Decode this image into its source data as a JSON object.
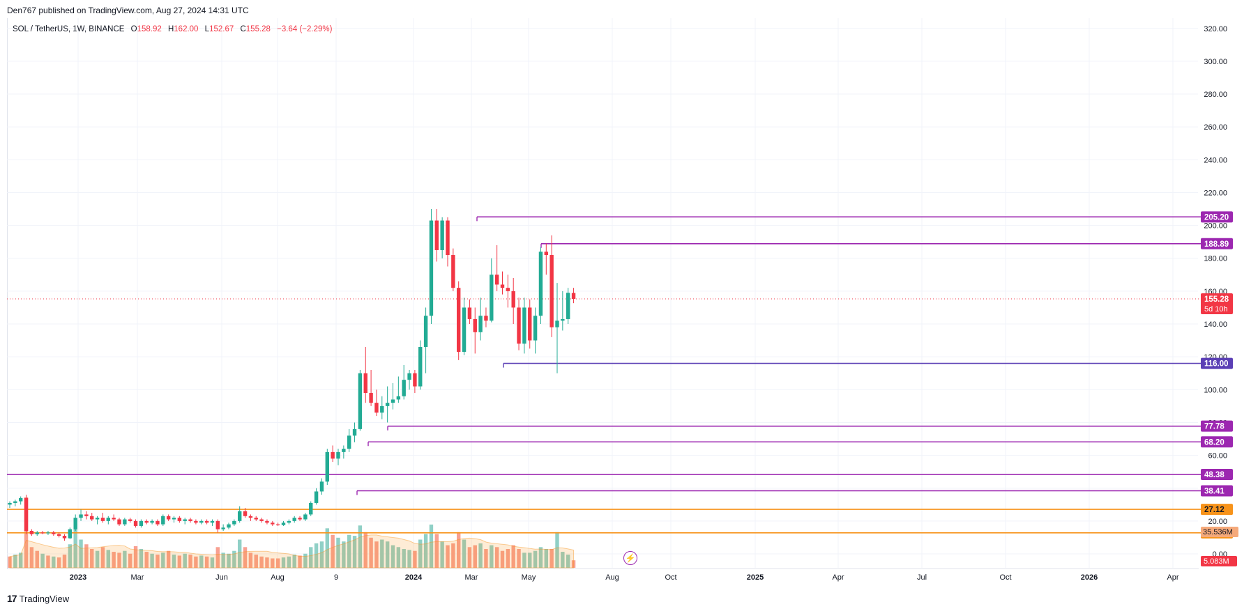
{
  "header": {
    "published": "Den767 published on TradingView.com, Aug 27, 2024 14:31 UTC"
  },
  "legend": {
    "symbol": "SOL / TetherUS, 1W, BINANCE",
    "open_label": "O",
    "open": "158.92",
    "high_label": "H",
    "high": "162.00",
    "low_label": "L",
    "low": "152.67",
    "close_label": "C",
    "close": "155.28",
    "change": "−3.64 (−2.29%)"
  },
  "footer": {
    "brand": "TradingView"
  },
  "colors": {
    "up": "#22ab94",
    "down": "#f23645",
    "level_purple": "#9c27b0",
    "level_support": "#5b3fb5",
    "level_orange": "#f7931a",
    "volume_up": "#90d0c6",
    "volume_down": "#f8a091",
    "grid": "#f0f3fa"
  },
  "chart_data": {
    "type": "candlestick",
    "timeframe": "1W",
    "y_axis_ticks": [
      "0.00",
      "20.00",
      "40.00",
      "60.00",
      "80.00",
      "100.00",
      "120.00",
      "140.00",
      "160.00",
      "180.00",
      "200.00",
      "220.00",
      "240.00",
      "260.00",
      "280.00",
      "300.00",
      "320.00"
    ],
    "ylim": [
      0,
      320
    ],
    "x_axis_labels": [
      "2023",
      "Mar",
      "Jun",
      "Aug",
      "9",
      "2024",
      "Mar",
      "May",
      "Aug",
      "Oct",
      "2025",
      "Apr",
      "Jul",
      "Oct",
      "2026",
      "Apr"
    ],
    "last_price": {
      "value": "155.28",
      "countdown": "5d 10h"
    },
    "horizontal_levels": [
      {
        "label": "205.20",
        "value": 205.2,
        "color": "#9c27b0"
      },
      {
        "label": "188.89",
        "value": 188.89,
        "color": "#9c27b0"
      },
      {
        "label": "116.00",
        "value": 116.0,
        "color": "#5b3fb5"
      },
      {
        "label": "77.78",
        "value": 77.78,
        "color": "#9c27b0"
      },
      {
        "label": "68.20",
        "value": 68.2,
        "color": "#9c27b0"
      },
      {
        "label": "48.38",
        "value": 48.38,
        "color": "#9c27b0"
      },
      {
        "label": "38.41",
        "value": 38.41,
        "color": "#9c27b0"
      },
      {
        "label": "27.12",
        "value": 27.12,
        "color": "#f7931a"
      },
      {
        "label": "12.80",
        "value": 12.8,
        "color": "#f7931a"
      }
    ],
    "volume_labels": {
      "ma": "35.536M",
      "current": "5.083M"
    },
    "candles": [
      {
        "o": 30,
        "h": 32,
        "l": 28,
        "c": 31
      },
      {
        "o": 31,
        "h": 33,
        "l": 29,
        "c": 32
      },
      {
        "o": 32,
        "h": 35,
        "l": 30,
        "c": 34
      },
      {
        "o": 34,
        "h": 36,
        "l": 12,
        "c": 14
      },
      {
        "o": 14,
        "h": 15,
        "l": 11,
        "c": 12
      },
      {
        "o": 12,
        "h": 14,
        "l": 11,
        "c": 13
      },
      {
        "o": 13,
        "h": 14,
        "l": 12,
        "c": 12.5
      },
      {
        "o": 12.5,
        "h": 14,
        "l": 11.5,
        "c": 13
      },
      {
        "o": 13,
        "h": 14,
        "l": 11,
        "c": 12
      },
      {
        "o": 12,
        "h": 13,
        "l": 10,
        "c": 11
      },
      {
        "o": 11,
        "h": 12,
        "l": 8,
        "c": 9.5
      },
      {
        "o": 9.5,
        "h": 16,
        "l": 9,
        "c": 15
      },
      {
        "o": 15,
        "h": 24,
        "l": 14,
        "c": 22
      },
      {
        "o": 22,
        "h": 27,
        "l": 20,
        "c": 24
      },
      {
        "o": 24,
        "h": 26,
        "l": 21,
        "c": 23
      },
      {
        "o": 23,
        "h": 25,
        "l": 20,
        "c": 21
      },
      {
        "o": 21,
        "h": 23,
        "l": 18,
        "c": 22
      },
      {
        "o": 22,
        "h": 25,
        "l": 19,
        "c": 20
      },
      {
        "o": 20,
        "h": 23,
        "l": 18,
        "c": 22
      },
      {
        "o": 22,
        "h": 24,
        "l": 20,
        "c": 21
      },
      {
        "o": 21,
        "h": 22,
        "l": 17,
        "c": 18
      },
      {
        "o": 18,
        "h": 22,
        "l": 17,
        "c": 21
      },
      {
        "o": 21,
        "h": 22,
        "l": 19,
        "c": 20
      },
      {
        "o": 20,
        "h": 21,
        "l": 16,
        "c": 17
      },
      {
        "o": 17,
        "h": 21,
        "l": 16,
        "c": 20
      },
      {
        "o": 20,
        "h": 21,
        "l": 18,
        "c": 19
      },
      {
        "o": 19,
        "h": 21,
        "l": 18,
        "c": 20
      },
      {
        "o": 20,
        "h": 21,
        "l": 17,
        "c": 18
      },
      {
        "o": 18,
        "h": 24,
        "l": 17,
        "c": 23
      },
      {
        "o": 23,
        "h": 24,
        "l": 20,
        "c": 21
      },
      {
        "o": 21,
        "h": 23,
        "l": 19,
        "c": 22
      },
      {
        "o": 22,
        "h": 23,
        "l": 19,
        "c": 20
      },
      {
        "o": 20,
        "h": 22,
        "l": 18,
        "c": 21
      },
      {
        "o": 21,
        "h": 22,
        "l": 19,
        "c": 20
      },
      {
        "o": 20,
        "h": 21,
        "l": 18,
        "c": 19
      },
      {
        "o": 19,
        "h": 21,
        "l": 18,
        "c": 20
      },
      {
        "o": 20,
        "h": 21,
        "l": 18,
        "c": 19
      },
      {
        "o": 19,
        "h": 21,
        "l": 17,
        "c": 20
      },
      {
        "o": 20,
        "h": 21,
        "l": 13,
        "c": 15
      },
      {
        "o": 15,
        "h": 18,
        "l": 14,
        "c": 16
      },
      {
        "o": 16,
        "h": 19,
        "l": 15,
        "c": 18
      },
      {
        "o": 18,
        "h": 21,
        "l": 17,
        "c": 20
      },
      {
        "o": 20,
        "h": 29,
        "l": 19,
        "c": 26
      },
      {
        "o": 26,
        "h": 28,
        "l": 22,
        "c": 23
      },
      {
        "o": 23,
        "h": 24,
        "l": 20,
        "c": 22
      },
      {
        "o": 22,
        "h": 23,
        "l": 20,
        "c": 21
      },
      {
        "o": 21,
        "h": 22,
        "l": 19,
        "c": 20
      },
      {
        "o": 20,
        "h": 21,
        "l": 18,
        "c": 19
      },
      {
        "o": 19,
        "h": 20,
        "l": 17,
        "c": 18
      },
      {
        "o": 18,
        "h": 19,
        "l": 17,
        "c": 17.5
      },
      {
        "o": 17.5,
        "h": 20,
        "l": 17,
        "c": 19
      },
      {
        "o": 19,
        "h": 21,
        "l": 18,
        "c": 20
      },
      {
        "o": 20,
        "h": 23,
        "l": 19,
        "c": 22
      },
      {
        "o": 22,
        "h": 23,
        "l": 20,
        "c": 21
      },
      {
        "o": 21,
        "h": 25,
        "l": 20,
        "c": 24
      },
      {
        "o": 24,
        "h": 32,
        "l": 23,
        "c": 31
      },
      {
        "o": 31,
        "h": 40,
        "l": 30,
        "c": 38
      },
      {
        "o": 38,
        "h": 46,
        "l": 36,
        "c": 44
      },
      {
        "o": 44,
        "h": 64,
        "l": 42,
        "c": 62
      },
      {
        "o": 62,
        "h": 66,
        "l": 56,
        "c": 58
      },
      {
        "o": 58,
        "h": 64,
        "l": 54,
        "c": 62
      },
      {
        "o": 62,
        "h": 66,
        "l": 58,
        "c": 64
      },
      {
        "o": 64,
        "h": 76,
        "l": 62,
        "c": 72
      },
      {
        "o": 72,
        "h": 80,
        "l": 68,
        "c": 76
      },
      {
        "o": 76,
        "h": 112,
        "l": 75,
        "c": 110
      },
      {
        "o": 110,
        "h": 126,
        "l": 92,
        "c": 98
      },
      {
        "o": 98,
        "h": 112,
        "l": 90,
        "c": 92
      },
      {
        "o": 92,
        "h": 100,
        "l": 84,
        "c": 86
      },
      {
        "o": 86,
        "h": 96,
        "l": 82,
        "c": 90
      },
      {
        "o": 90,
        "h": 102,
        "l": 80,
        "c": 92
      },
      {
        "o": 92,
        "h": 104,
        "l": 88,
        "c": 94
      },
      {
        "o": 94,
        "h": 108,
        "l": 92,
        "c": 96
      },
      {
        "o": 96,
        "h": 115,
        "l": 94,
        "c": 106
      },
      {
        "o": 106,
        "h": 112,
        "l": 100,
        "c": 110
      },
      {
        "o": 110,
        "h": 112,
        "l": 98,
        "c": 102
      },
      {
        "o": 102,
        "h": 130,
        "l": 100,
        "c": 126
      },
      {
        "o": 126,
        "h": 150,
        "l": 110,
        "c": 145
      },
      {
        "o": 145,
        "h": 210,
        "l": 140,
        "c": 203
      },
      {
        "o": 203,
        "h": 210,
        "l": 178,
        "c": 185
      },
      {
        "o": 185,
        "h": 205,
        "l": 180,
        "c": 203
      },
      {
        "o": 203,
        "h": 205,
        "l": 175,
        "c": 182
      },
      {
        "o": 182,
        "h": 186,
        "l": 160,
        "c": 162
      },
      {
        "o": 162,
        "h": 166,
        "l": 118,
        "c": 123
      },
      {
        "o": 123,
        "h": 156,
        "l": 121,
        "c": 150
      },
      {
        "o": 150,
        "h": 155,
        "l": 140,
        "c": 143
      },
      {
        "o": 143,
        "h": 150,
        "l": 122,
        "c": 135
      },
      {
        "o": 135,
        "h": 156,
        "l": 130,
        "c": 145
      },
      {
        "o": 145,
        "h": 150,
        "l": 138,
        "c": 142
      },
      {
        "o": 142,
        "h": 180,
        "l": 141,
        "c": 170
      },
      {
        "o": 170,
        "h": 188,
        "l": 160,
        "c": 164
      },
      {
        "o": 164,
        "h": 172,
        "l": 158,
        "c": 162
      },
      {
        "o": 162,
        "h": 170,
        "l": 150,
        "c": 160
      },
      {
        "o": 160,
        "h": 168,
        "l": 140,
        "c": 150
      },
      {
        "o": 150,
        "h": 156,
        "l": 124,
        "c": 128
      },
      {
        "o": 128,
        "h": 156,
        "l": 122,
        "c": 150
      },
      {
        "o": 150,
        "h": 155,
        "l": 125,
        "c": 130
      },
      {
        "o": 130,
        "h": 150,
        "l": 122,
        "c": 145
      },
      {
        "o": 145,
        "h": 187,
        "l": 140,
        "c": 184
      },
      {
        "o": 184,
        "h": 189,
        "l": 170,
        "c": 182
      },
      {
        "o": 182,
        "h": 194,
        "l": 132,
        "c": 138
      },
      {
        "o": 138,
        "h": 165,
        "l": 110,
        "c": 142
      },
      {
        "o": 142,
        "h": 160,
        "l": 136,
        "c": 143
      },
      {
        "o": 143,
        "h": 162,
        "l": 140,
        "c": 159
      },
      {
        "o": 158.92,
        "h": 162,
        "l": 152.67,
        "c": 155.28
      }
    ],
    "volume": [
      {
        "v": 12,
        "up": false
      },
      {
        "v": 14,
        "up": true
      },
      {
        "v": 16,
        "up": true
      },
      {
        "v": 75,
        "up": false
      },
      {
        "v": 22,
        "up": false
      },
      {
        "v": 18,
        "up": false
      },
      {
        "v": 15,
        "up": true
      },
      {
        "v": 13,
        "up": false
      },
      {
        "v": 12,
        "up": true
      },
      {
        "v": 11,
        "up": false
      },
      {
        "v": 14,
        "up": false
      },
      {
        "v": 25,
        "up": true
      },
      {
        "v": 47,
        "up": true
      },
      {
        "v": 30,
        "up": true
      },
      {
        "v": 25,
        "up": false
      },
      {
        "v": 20,
        "up": false
      },
      {
        "v": 18,
        "up": true
      },
      {
        "v": 22,
        "up": false
      },
      {
        "v": 19,
        "up": true
      },
      {
        "v": 17,
        "up": false
      },
      {
        "v": 16,
        "up": false
      },
      {
        "v": 18,
        "up": true
      },
      {
        "v": 15,
        "up": false
      },
      {
        "v": 23,
        "up": false
      },
      {
        "v": 20,
        "up": true
      },
      {
        "v": 17,
        "up": false
      },
      {
        "v": 15,
        "up": true
      },
      {
        "v": 14,
        "up": false
      },
      {
        "v": 16,
        "up": true
      },
      {
        "v": 18,
        "up": false
      },
      {
        "v": 14,
        "up": true
      },
      {
        "v": 13,
        "up": false
      },
      {
        "v": 15,
        "up": true
      },
      {
        "v": 14,
        "up": false
      },
      {
        "v": 12,
        "up": false
      },
      {
        "v": 13,
        "up": true
      },
      {
        "v": 12,
        "up": false
      },
      {
        "v": 11,
        "up": true
      },
      {
        "v": 22,
        "up": false
      },
      {
        "v": 16,
        "up": true
      },
      {
        "v": 15,
        "up": true
      },
      {
        "v": 18,
        "up": true
      },
      {
        "v": 30,
        "up": true
      },
      {
        "v": 22,
        "up": false
      },
      {
        "v": 16,
        "up": false
      },
      {
        "v": 14,
        "up": false
      },
      {
        "v": 12,
        "up": false
      },
      {
        "v": 11,
        "up": false
      },
      {
        "v": 10,
        "up": false
      },
      {
        "v": 10,
        "up": false
      },
      {
        "v": 11,
        "up": true
      },
      {
        "v": 12,
        "up": true
      },
      {
        "v": 14,
        "up": true
      },
      {
        "v": 13,
        "up": false
      },
      {
        "v": 15,
        "up": true
      },
      {
        "v": 22,
        "up": true
      },
      {
        "v": 26,
        "up": true
      },
      {
        "v": 28,
        "up": true
      },
      {
        "v": 42,
        "up": true
      },
      {
        "v": 35,
        "up": false
      },
      {
        "v": 32,
        "up": true
      },
      {
        "v": 28,
        "up": true
      },
      {
        "v": 35,
        "up": true
      },
      {
        "v": 34,
        "up": true
      },
      {
        "v": 45,
        "up": true
      },
      {
        "v": 38,
        "up": false
      },
      {
        "v": 32,
        "up": false
      },
      {
        "v": 28,
        "up": false
      },
      {
        "v": 30,
        "up": true
      },
      {
        "v": 28,
        "up": true
      },
      {
        "v": 24,
        "up": true
      },
      {
        "v": 22,
        "up": true
      },
      {
        "v": 20,
        "up": true
      },
      {
        "v": 19,
        "up": true
      },
      {
        "v": 18,
        "up": false
      },
      {
        "v": 30,
        "up": true
      },
      {
        "v": 36,
        "up": true
      },
      {
        "v": 46,
        "up": true
      },
      {
        "v": 36,
        "up": false
      },
      {
        "v": 28,
        "up": true
      },
      {
        "v": 24,
        "up": false
      },
      {
        "v": 26,
        "up": false
      },
      {
        "v": 38,
        "up": false
      },
      {
        "v": 30,
        "up": true
      },
      {
        "v": 22,
        "up": false
      },
      {
        "v": 24,
        "up": false
      },
      {
        "v": 26,
        "up": true
      },
      {
        "v": 20,
        "up": false
      },
      {
        "v": 24,
        "up": true
      },
      {
        "v": 22,
        "up": false
      },
      {
        "v": 18,
        "up": false
      },
      {
        "v": 20,
        "up": false
      },
      {
        "v": 24,
        "up": false
      },
      {
        "v": 20,
        "up": false
      },
      {
        "v": 16,
        "up": true
      },
      {
        "v": 16,
        "up": true
      },
      {
        "v": 18,
        "up": true
      },
      {
        "v": 22,
        "up": true
      },
      {
        "v": 20,
        "up": true
      },
      {
        "v": 20,
        "up": false
      },
      {
        "v": 38,
        "up": true
      },
      {
        "v": 17,
        "up": true
      },
      {
        "v": 14,
        "up": true
      },
      {
        "v": 8,
        "up": false
      }
    ]
  }
}
